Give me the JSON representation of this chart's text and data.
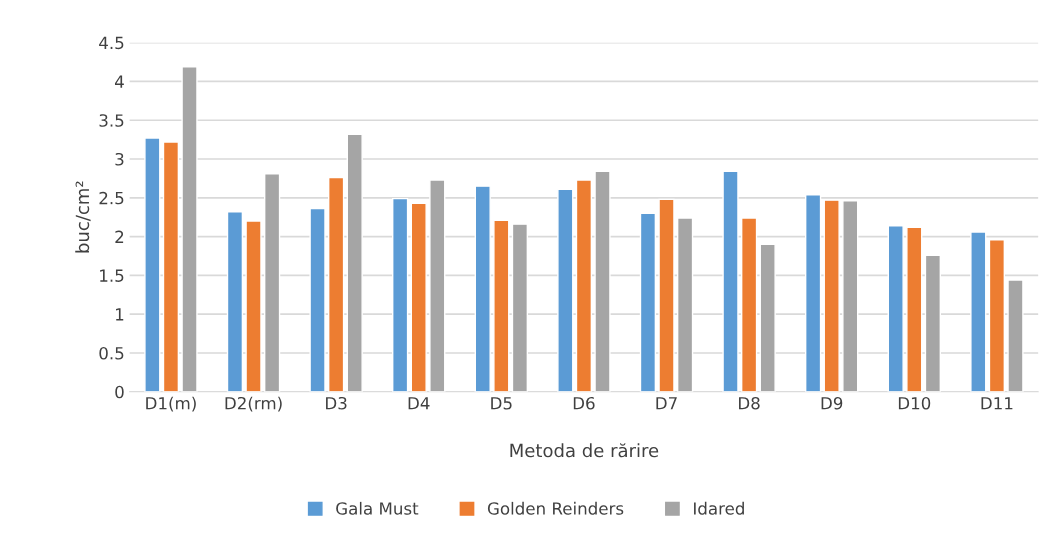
{
  "chart_data": {
    "type": "bar",
    "xlabel": "Metoda de rărire",
    "ylabel": "buc/cm²",
    "categories": [
      "D1(m)",
      "D2(rm)",
      "D3",
      "D4",
      "D5",
      "D6",
      "D7",
      "D8",
      "D9",
      "D10",
      "D11"
    ],
    "series": [
      {
        "name": "Gala Must",
        "color": "#5b9bd5",
        "values": [
          3.27,
          2.32,
          2.36,
          2.49,
          2.65,
          2.61,
          2.3,
          2.84,
          2.54,
          2.14,
          2.06
        ]
      },
      {
        "name": "Golden Reinders",
        "color": "#ed7d31",
        "values": [
          3.22,
          2.2,
          2.76,
          2.43,
          2.21,
          2.73,
          2.48,
          2.24,
          2.47,
          2.12,
          1.96
        ]
      },
      {
        "name": "Idared",
        "color": "#a5a5a5",
        "values": [
          4.19,
          2.81,
          3.32,
          2.73,
          2.16,
          2.84,
          2.24,
          1.9,
          2.46,
          1.76,
          1.44
        ]
      }
    ],
    "ylim": [
      0,
      4.5
    ],
    "yticks": [
      0,
      0.5,
      1,
      1.5,
      2,
      2.5,
      3,
      3.5,
      4,
      4.5
    ],
    "grid": "y",
    "legend": "bottom"
  }
}
